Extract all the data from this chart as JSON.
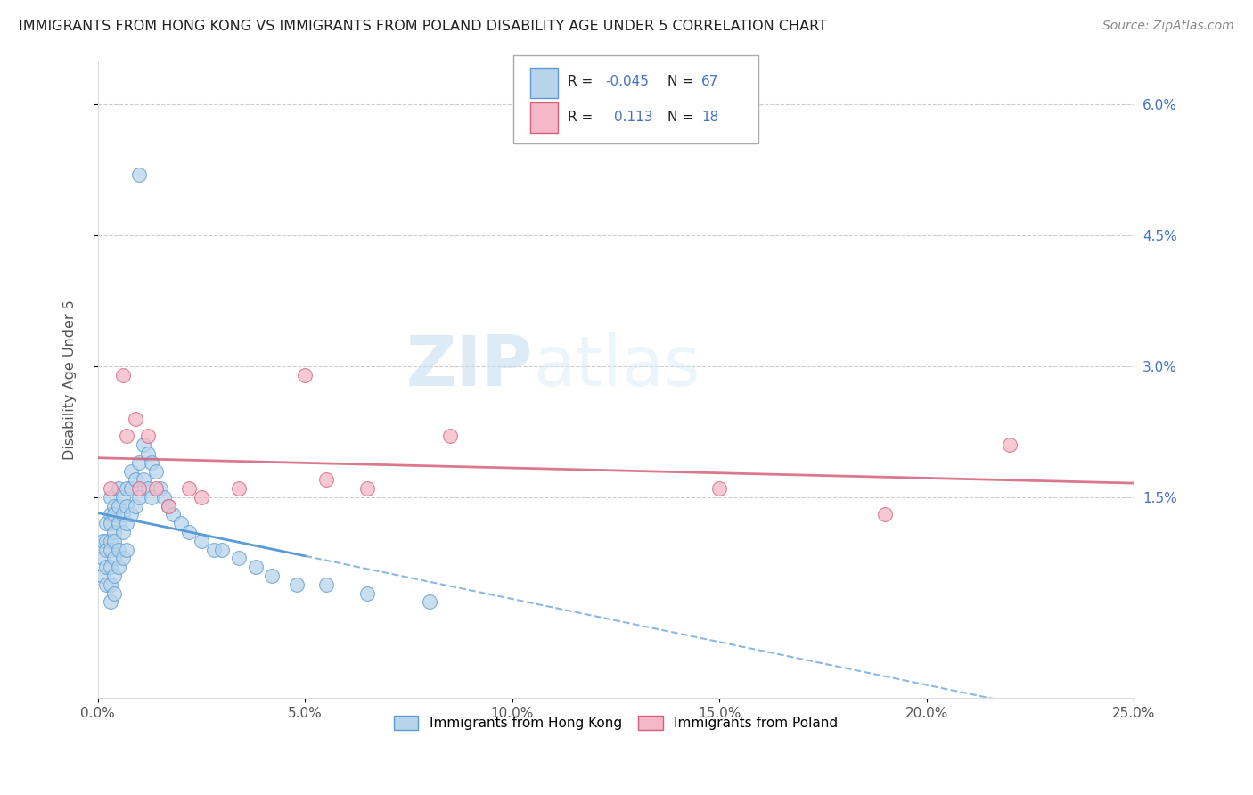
{
  "title": "IMMIGRANTS FROM HONG KONG VS IMMIGRANTS FROM POLAND DISABILITY AGE UNDER 5 CORRELATION CHART",
  "source": "Source: ZipAtlas.com",
  "ylabel": "Disability Age Under 5",
  "x_min": 0.0,
  "x_max": 0.25,
  "y_min": -0.008,
  "y_max": 0.065,
  "y_ticks": [
    0.015,
    0.03,
    0.045,
    0.06
  ],
  "y_tick_labels": [
    "1.5%",
    "3.0%",
    "4.5%",
    "6.0%"
  ],
  "x_ticks": [
    0.0,
    0.05,
    0.1,
    0.15,
    0.2,
    0.25
  ],
  "x_tick_labels": [
    "0.0%",
    "5.0%",
    "10.0%",
    "15.0%",
    "20.0%",
    "25.0%"
  ],
  "hong_kong_color_fill": "#b8d4ea",
  "hong_kong_color_edge": "#5b9bd5",
  "poland_color_fill": "#f4b8c8",
  "poland_color_edge": "#d4607a",
  "watermark_color": "#d8eaf8",
  "background_color": "#ffffff",
  "hong_kong_x": [
    0.001,
    0.001,
    0.001,
    0.002,
    0.002,
    0.002,
    0.002,
    0.002,
    0.003,
    0.003,
    0.003,
    0.003,
    0.003,
    0.003,
    0.003,
    0.003,
    0.004,
    0.004,
    0.004,
    0.004,
    0.004,
    0.004,
    0.004,
    0.005,
    0.005,
    0.005,
    0.005,
    0.005,
    0.006,
    0.006,
    0.006,
    0.006,
    0.007,
    0.007,
    0.007,
    0.007,
    0.008,
    0.008,
    0.008,
    0.009,
    0.009,
    0.01,
    0.01,
    0.011,
    0.011,
    0.012,
    0.012,
    0.013,
    0.013,
    0.014,
    0.015,
    0.016,
    0.017,
    0.018,
    0.02,
    0.022,
    0.025,
    0.028,
    0.03,
    0.034,
    0.038,
    0.042,
    0.048,
    0.055,
    0.065,
    0.08,
    0.01
  ],
  "hong_kong_y": [
    0.01,
    0.008,
    0.006,
    0.012,
    0.01,
    0.009,
    0.007,
    0.005,
    0.015,
    0.013,
    0.012,
    0.01,
    0.009,
    0.007,
    0.005,
    0.003,
    0.014,
    0.013,
    0.011,
    0.01,
    0.008,
    0.006,
    0.004,
    0.016,
    0.014,
    0.012,
    0.009,
    0.007,
    0.015,
    0.013,
    0.011,
    0.008,
    0.016,
    0.014,
    0.012,
    0.009,
    0.018,
    0.016,
    0.013,
    0.017,
    0.014,
    0.019,
    0.015,
    0.021,
    0.017,
    0.02,
    0.016,
    0.019,
    0.015,
    0.018,
    0.016,
    0.015,
    0.014,
    0.013,
    0.012,
    0.011,
    0.01,
    0.009,
    0.009,
    0.008,
    0.007,
    0.006,
    0.005,
    0.005,
    0.004,
    0.003,
    0.052
  ],
  "poland_x": [
    0.003,
    0.006,
    0.007,
    0.009,
    0.01,
    0.012,
    0.014,
    0.017,
    0.022,
    0.025,
    0.034,
    0.05,
    0.055,
    0.065,
    0.085,
    0.15,
    0.19,
    0.22
  ],
  "poland_y": [
    0.016,
    0.029,
    0.022,
    0.024,
    0.016,
    0.022,
    0.016,
    0.014,
    0.016,
    0.015,
    0.016,
    0.029,
    0.017,
    0.016,
    0.022,
    0.016,
    0.013,
    0.021
  ],
  "hk_trend_solid_end": 0.05,
  "legend_R1": "-0.045",
  "legend_N1": "67",
  "legend_R2": "0.113",
  "legend_N2": "18"
}
